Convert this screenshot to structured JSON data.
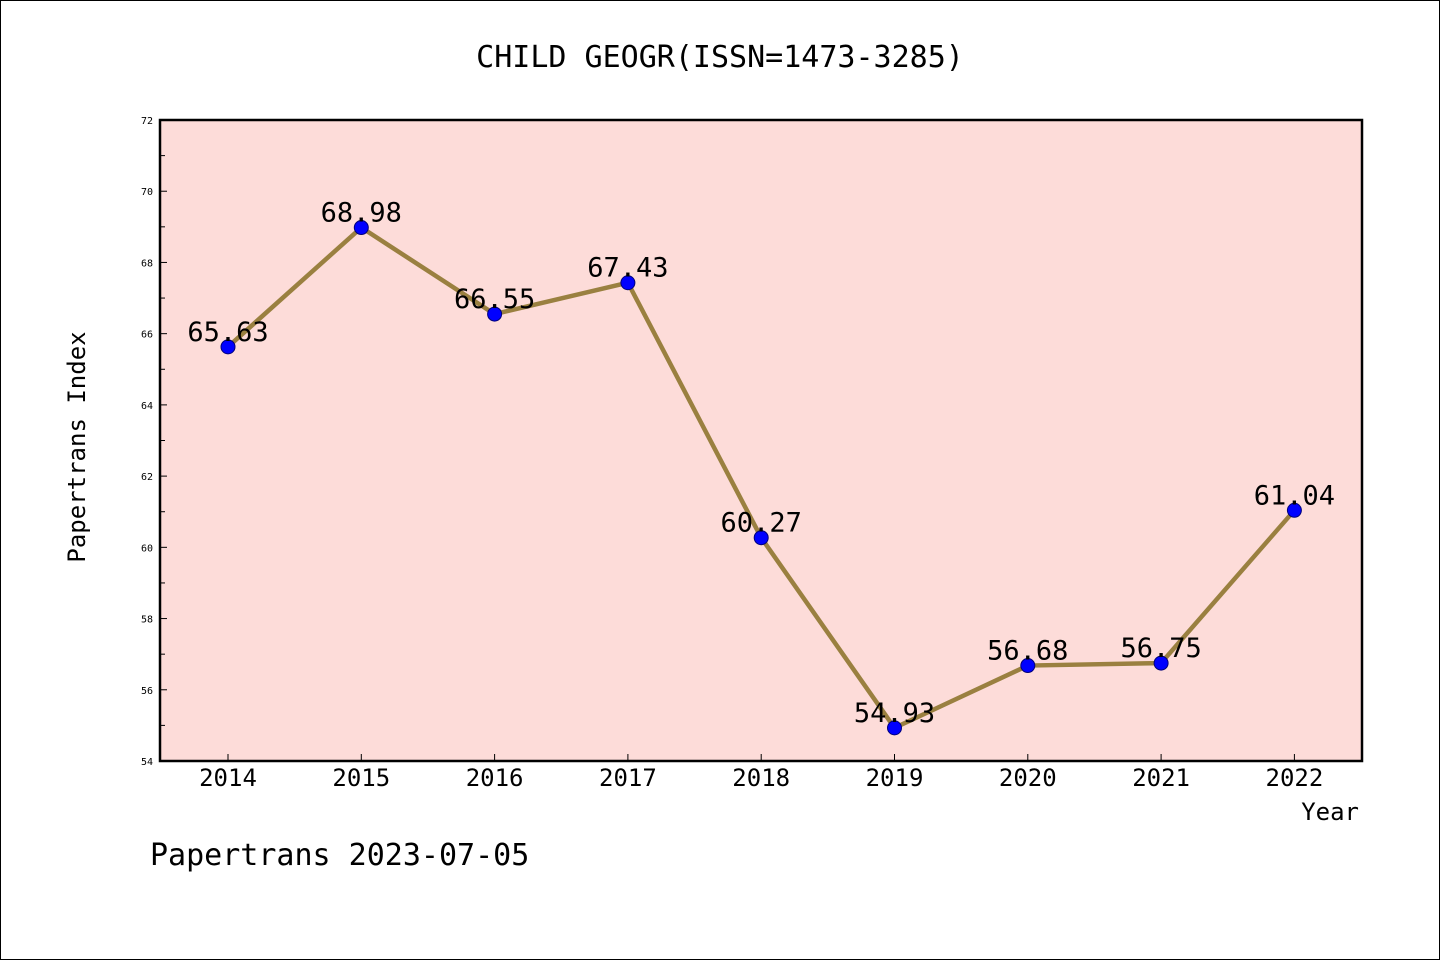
{
  "chart_data": {
    "type": "line",
    "title": "CHILD GEOGR(ISSN=1473-3285)",
    "xlabel": "Year",
    "ylabel": "Papertrans Index",
    "x": [
      "2014",
      "2015",
      "2016",
      "2017",
      "2018",
      "2019",
      "2020",
      "2021",
      "2022"
    ],
    "series": [
      {
        "values": [
          65.63,
          68.98,
          66.55,
          67.43,
          60.27,
          54.93,
          56.68,
          56.75,
          61.04
        ]
      }
    ],
    "data_labels": [
      "65.63",
      "68.98",
      "66.55",
      "67.43",
      "60.27",
      "54.93",
      "56.68",
      "56.75",
      "61.04"
    ],
    "ylim": [
      54,
      72
    ],
    "yticks": [
      54,
      56,
      58,
      60,
      62,
      64,
      66,
      68,
      70,
      72
    ],
    "grid": false,
    "colors": {
      "plot_background": "#fddcd9",
      "line": "#9a8040",
      "marker": "#0000ff",
      "axes": "#000000"
    }
  },
  "footer": "Papertrans 2023-07-05"
}
